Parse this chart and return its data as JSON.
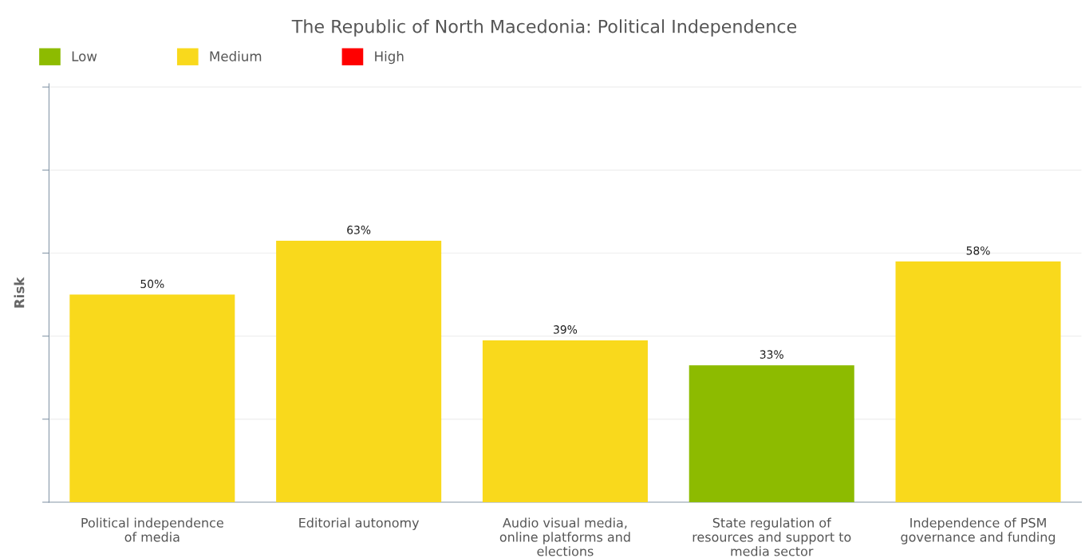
{
  "chart_data": {
    "type": "bar",
    "title": "The Republic of North Macedonia: Political Independence",
    "ylabel": "Risk",
    "categories": [
      "Political independence of media",
      "Editorial autonomy",
      "Audio visual media, online platforms and elections",
      "State regulation of resources and support to media sector",
      "Independence of PSM governance and funding"
    ],
    "series": [
      {
        "name": "Low",
        "color": "#8dbb00",
        "values": [
          null,
          null,
          null,
          33,
          null
        ],
        "value_labels": [
          null,
          null,
          null,
          "33%",
          null
        ]
      },
      {
        "name": "Medium",
        "color": "#f9d91c",
        "values": [
          50,
          63,
          39,
          null,
          58
        ],
        "value_labels": [
          "50%",
          "63%",
          "39%",
          null,
          "58%"
        ]
      },
      {
        "name": "High",
        "color": "#ff0000",
        "values": [
          null,
          null,
          null,
          null,
          null
        ]
      }
    ],
    "grid": "y",
    "legend": "top left",
    "tick_labels": "x"
  }
}
